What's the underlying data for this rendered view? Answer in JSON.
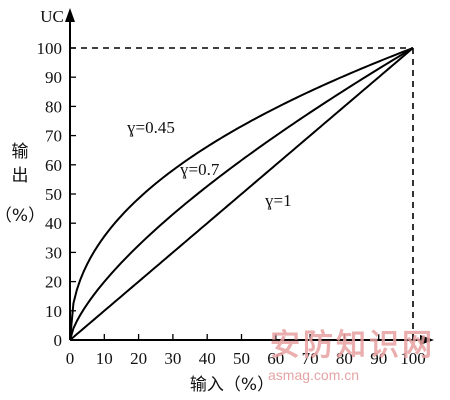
{
  "chart_data": {
    "type": "line",
    "ylabel_top": "UC",
    "ylabel_side": [
      "输",
      "出",
      "（%）"
    ],
    "xlabel": "输入（%）",
    "xlim": [
      0,
      100
    ],
    "ylim": [
      0,
      100
    ],
    "x_ticks": [
      0,
      10,
      20,
      30,
      40,
      50,
      60,
      70,
      80,
      90,
      100
    ],
    "y_ticks": [
      0,
      10,
      20,
      30,
      40,
      50,
      60,
      70,
      80,
      90,
      100
    ],
    "series": [
      {
        "name": "γ=0.45",
        "gamma": 0.45,
        "x": [
          0,
          10,
          20,
          30,
          40,
          50,
          60,
          70,
          80,
          90,
          100
        ],
        "y": [
          0,
          35.5,
          48.5,
          58.2,
          66.2,
          73.2,
          79.5,
          85.2,
          90.4,
          95.4,
          100
        ]
      },
      {
        "name": "γ=0.7",
        "gamma": 0.7,
        "x": [
          0,
          10,
          20,
          30,
          40,
          50,
          60,
          70,
          80,
          90,
          100
        ],
        "y": [
          0,
          20.0,
          32.4,
          43.0,
          52.7,
          61.6,
          69.9,
          77.9,
          85.5,
          92.9,
          100
        ]
      },
      {
        "name": "γ=1",
        "gamma": 1,
        "x": [
          0,
          10,
          20,
          30,
          40,
          50,
          60,
          70,
          80,
          90,
          100
        ],
        "y": [
          0,
          10,
          20,
          30,
          40,
          50,
          60,
          70,
          80,
          90,
          100
        ]
      }
    ],
    "curve_labels": [
      "ɣ=0.45",
      "ɣ=0.7",
      "ɣ=1"
    ],
    "grid": false,
    "reference_lines": "dashed guides at x=100 and y=100"
  },
  "watermark": {
    "text": "安防知识网",
    "url": "asmag.com.cn"
  }
}
